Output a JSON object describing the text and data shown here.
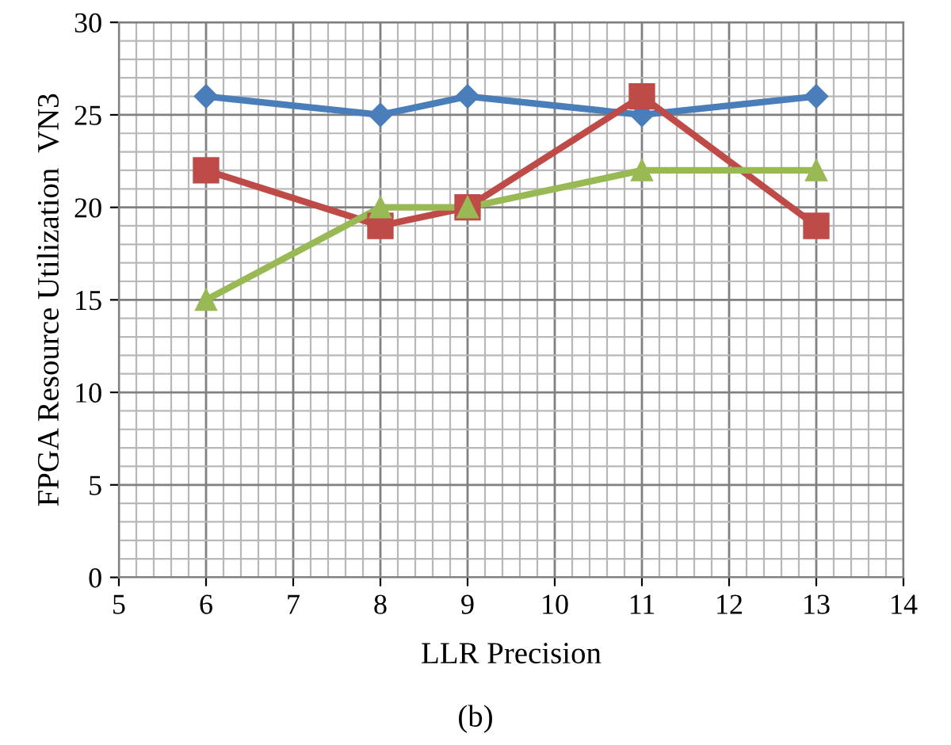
{
  "chart_data": {
    "type": "line",
    "xlabel": "LLR Precision",
    "ylabel": "FPGA Resource Utilization  VN3",
    "annotations": [
      "(b)"
    ],
    "x": [
      6,
      8,
      9,
      11,
      13
    ],
    "series": [
      {
        "color": "#4a7ebb",
        "values": [
          26,
          25,
          26,
          25,
          26
        ],
        "marker": "diamond"
      },
      {
        "color": "#be4b48",
        "values": [
          22,
          19,
          20,
          26,
          19
        ],
        "marker": "square"
      },
      {
        "color": "#98b954",
        "values": [
          15,
          20,
          20,
          22,
          22
        ],
        "marker": "triangle"
      }
    ],
    "xlim": [
      5,
      14
    ],
    "xticks": [
      5,
      6,
      7,
      8,
      9,
      10,
      11,
      12,
      13,
      14
    ],
    "ylim": [
      0,
      30
    ],
    "yticks": [
      0,
      5,
      10,
      15,
      20,
      25,
      30
    ],
    "grid": true,
    "legend": false,
    "line_style": "solid"
  }
}
